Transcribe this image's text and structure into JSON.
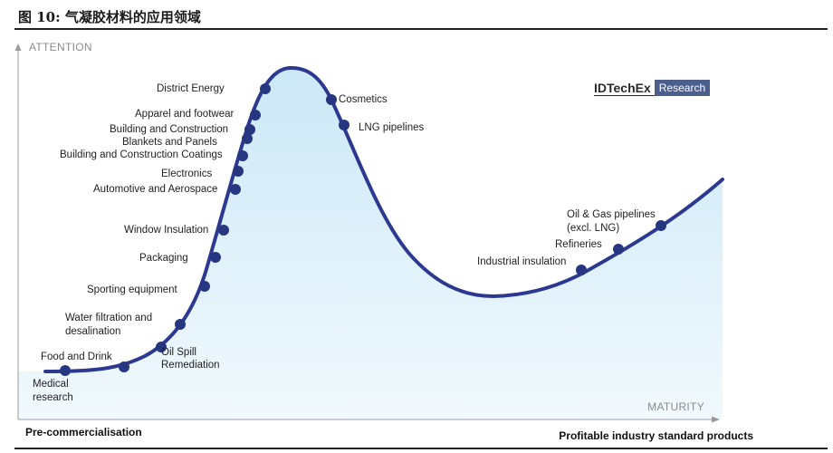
{
  "figure": {
    "title": "图 10: 气凝胶材料的应用领域"
  },
  "axes": {
    "y_label": "ATTENTION",
    "x_label": "MATURITY"
  },
  "footer": {
    "left": "Pre-commercialisation",
    "right": "Profitable industry standard products"
  },
  "logo": {
    "main": "IDTechEx",
    "sub": "Research"
  },
  "colors": {
    "curve": "#2b3990",
    "marker": "#263680",
    "fill_top": "#cce8f7",
    "fill_bottom": "#f1f9fd",
    "axis": "#9a9a9a"
  },
  "points": [
    {
      "id": "medical-research",
      "lines": [
        "Medical",
        "research"
      ]
    },
    {
      "id": "food-and-drink",
      "lines": [
        "Food and Drink"
      ]
    },
    {
      "id": "oil-spill-remediation",
      "lines": [
        "Oil Spill",
        "Remediation"
      ]
    },
    {
      "id": "water-filtration",
      "lines": [
        "Water filtration and",
        "desalination"
      ]
    },
    {
      "id": "sporting-equipment",
      "lines": [
        "Sporting equipment"
      ]
    },
    {
      "id": "packaging",
      "lines": [
        "Packaging"
      ]
    },
    {
      "id": "window-insulation",
      "lines": [
        "Window Insulation"
      ]
    },
    {
      "id": "automotive-aerospace",
      "lines": [
        "Automotive and Aerospace"
      ]
    },
    {
      "id": "electronics",
      "lines": [
        "Electronics"
      ]
    },
    {
      "id": "building-construction-coatings",
      "lines": [
        "Building and Construction Coatings"
      ]
    },
    {
      "id": "blankets-panels",
      "lines": [
        "Blankets and Panels"
      ]
    },
    {
      "id": "building-construction",
      "lines": [
        "Building and Construction"
      ]
    },
    {
      "id": "apparel-footwear",
      "lines": [
        "Apparel and footwear"
      ]
    },
    {
      "id": "district-energy",
      "lines": [
        "District Energy"
      ]
    },
    {
      "id": "cosmetics",
      "lines": [
        "Cosmetics"
      ]
    },
    {
      "id": "lng-pipelines",
      "lines": [
        "LNG pipelines"
      ]
    },
    {
      "id": "industrial-insulation",
      "lines": [
        "Industrial insulation"
      ]
    },
    {
      "id": "refineries",
      "lines": [
        "Refineries"
      ]
    },
    {
      "id": "oil-gas-pipelines",
      "lines": [
        "Oil & Gas pipelines",
        "(excl. LNG)"
      ]
    }
  ]
}
